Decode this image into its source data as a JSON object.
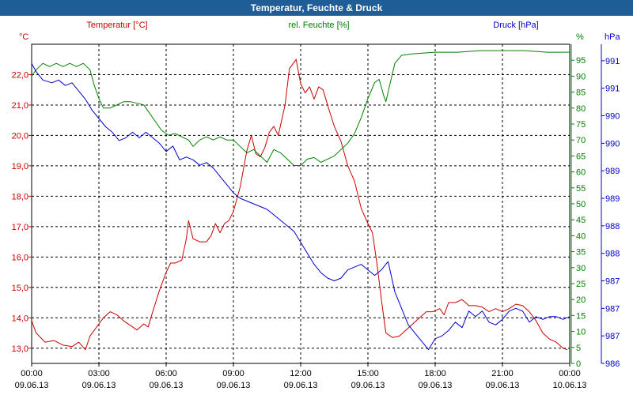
{
  "window": {
    "title": "Temperatur, Feuchte & Druck"
  },
  "colors": {
    "temperature": "#cc0000",
    "humidity": "#008000",
    "pressure": "#0000cc",
    "titlebar": "#1f5d97",
    "grid": "#000000"
  },
  "chart_data": {
    "type": "line",
    "title": "Temperatur, Feuchte & Druck",
    "grid": true,
    "x_ticks": [
      {
        "time": "00:00",
        "date": "09.06.13"
      },
      {
        "time": "03:00",
        "date": "09.06.13"
      },
      {
        "time": "06:00",
        "date": "09.06.13"
      },
      {
        "time": "09:00",
        "date": "09.06.13"
      },
      {
        "time": "12:00",
        "date": "09.06.13"
      },
      {
        "time": "15:00",
        "date": "09.06.13"
      },
      {
        "time": "18:00",
        "date": "09.06.13"
      },
      {
        "time": "21:00",
        "date": "09.06.13"
      },
      {
        "time": "00:00",
        "date": "10.06.13"
      }
    ],
    "xlim": [
      0,
      24
    ],
    "axes": {
      "temperature": {
        "label": "Temperatur [°C]",
        "unit": "°C",
        "ylim": [
          12.5,
          23.0
        ],
        "ticks": [
          "13,0",
          "14,0",
          "15,0",
          "16,0",
          "17,0",
          "18,0",
          "19,0",
          "20,0",
          "21,0",
          "22,0"
        ]
      },
      "humidity": {
        "label": "rel. Feuchte [%]",
        "unit": "%",
        "ylim": [
          0,
          100
        ],
        "ticks": [
          "0",
          "5",
          "10",
          "15",
          "20",
          "25",
          "30",
          "35",
          "40",
          "45",
          "50",
          "55",
          "60",
          "65",
          "70",
          "75",
          "80",
          "85",
          "90",
          "95"
        ]
      },
      "pressure": {
        "label": "Druck [hPa]",
        "unit": "hPa",
        "ylim": [
          986.0,
          991.8
        ],
        "ticks": [
          "986",
          "987",
          "987",
          "987",
          "988",
          "988",
          "989",
          "989",
          "990",
          "990",
          "991",
          "991"
        ]
      }
    },
    "series": [
      {
        "name": "Temperatur [°C]",
        "axis": "temperature",
        "points": [
          [
            0,
            13.9
          ],
          [
            0.2,
            13.5
          ],
          [
            0.6,
            13.2
          ],
          [
            1.0,
            13.25
          ],
          [
            1.4,
            13.1
          ],
          [
            1.8,
            13.05
          ],
          [
            2.1,
            13.2
          ],
          [
            2.4,
            12.95
          ],
          [
            2.6,
            13.4
          ],
          [
            2.9,
            13.7
          ],
          [
            3.2,
            14.0
          ],
          [
            3.5,
            14.2
          ],
          [
            3.8,
            14.1
          ],
          [
            4.1,
            13.9
          ],
          [
            4.4,
            13.75
          ],
          [
            4.7,
            13.6
          ],
          [
            5.0,
            13.8
          ],
          [
            5.2,
            13.7
          ],
          [
            5.4,
            14.2
          ],
          [
            5.7,
            14.9
          ],
          [
            6.0,
            15.5
          ],
          [
            6.2,
            15.8
          ],
          [
            6.4,
            15.8
          ],
          [
            6.7,
            15.9
          ],
          [
            6.9,
            16.6
          ],
          [
            7.0,
            17.2
          ],
          [
            7.2,
            16.6
          ],
          [
            7.5,
            16.5
          ],
          [
            7.8,
            16.5
          ],
          [
            8.0,
            16.7
          ],
          [
            8.2,
            17.1
          ],
          [
            8.4,
            16.8
          ],
          [
            8.6,
            17.1
          ],
          [
            8.8,
            17.2
          ],
          [
            9.0,
            17.5
          ],
          [
            9.3,
            18.3
          ],
          [
            9.6,
            19.5
          ],
          [
            9.8,
            20.0
          ],
          [
            10.0,
            19.4
          ],
          [
            10.2,
            19.3
          ],
          [
            10.4,
            19.6
          ],
          [
            10.6,
            20.1
          ],
          [
            10.8,
            20.3
          ],
          [
            11.0,
            20.0
          ],
          [
            11.3,
            21.0
          ],
          [
            11.5,
            22.2
          ],
          [
            11.8,
            22.5
          ],
          [
            12.0,
            21.7
          ],
          [
            12.2,
            21.4
          ],
          [
            12.4,
            21.6
          ],
          [
            12.6,
            21.2
          ],
          [
            12.8,
            21.6
          ],
          [
            13.0,
            21.5
          ],
          [
            13.2,
            21.0
          ],
          [
            13.5,
            20.3
          ],
          [
            13.8,
            19.8
          ],
          [
            14.1,
            19.0
          ],
          [
            14.4,
            18.5
          ],
          [
            14.7,
            17.6
          ],
          [
            15.0,
            17.1
          ],
          [
            15.2,
            16.8
          ],
          [
            15.4,
            15.8
          ],
          [
            15.6,
            14.6
          ],
          [
            15.8,
            13.5
          ],
          [
            16.1,
            13.35
          ],
          [
            16.4,
            13.4
          ],
          [
            16.7,
            13.6
          ],
          [
            17.0,
            13.8
          ],
          [
            17.3,
            14.0
          ],
          [
            17.6,
            14.2
          ],
          [
            17.9,
            14.2
          ],
          [
            18.2,
            14.3
          ],
          [
            18.4,
            14.1
          ],
          [
            18.6,
            14.5
          ],
          [
            18.9,
            14.5
          ],
          [
            19.2,
            14.6
          ],
          [
            19.5,
            14.4
          ],
          [
            19.8,
            14.4
          ],
          [
            20.1,
            14.35
          ],
          [
            20.4,
            14.2
          ],
          [
            20.7,
            14.3
          ],
          [
            21.0,
            14.2
          ],
          [
            21.3,
            14.3
          ],
          [
            21.6,
            14.45
          ],
          [
            21.9,
            14.4
          ],
          [
            22.2,
            14.2
          ],
          [
            22.5,
            13.9
          ],
          [
            22.8,
            13.5
          ],
          [
            23.1,
            13.3
          ],
          [
            23.4,
            13.2
          ],
          [
            23.7,
            13.0
          ],
          [
            23.9,
            12.95
          ]
        ]
      },
      {
        "name": "rel. Feuchte [%]",
        "axis": "humidity",
        "points": [
          [
            0,
            90
          ],
          [
            0.2,
            92
          ],
          [
            0.5,
            94
          ],
          [
            0.8,
            93
          ],
          [
            1.1,
            94
          ],
          [
            1.4,
            93
          ],
          [
            1.7,
            94
          ],
          [
            2.0,
            93
          ],
          [
            2.3,
            94
          ],
          [
            2.6,
            92
          ],
          [
            2.8,
            87
          ],
          [
            3.0,
            83
          ],
          [
            3.2,
            80
          ],
          [
            3.5,
            80
          ],
          [
            3.8,
            81
          ],
          [
            4.1,
            82
          ],
          [
            4.4,
            82
          ],
          [
            4.7,
            81.5
          ],
          [
            5.0,
            81
          ],
          [
            5.2,
            79
          ],
          [
            5.5,
            76
          ],
          [
            5.8,
            73
          ],
          [
            6.1,
            71.5
          ],
          [
            6.4,
            72
          ],
          [
            6.7,
            71
          ],
          [
            7.0,
            70
          ],
          [
            7.2,
            68
          ],
          [
            7.5,
            70
          ],
          [
            7.8,
            71
          ],
          [
            8.1,
            70
          ],
          [
            8.4,
            71
          ],
          [
            8.7,
            70
          ],
          [
            9.0,
            70
          ],
          [
            9.3,
            68
          ],
          [
            9.6,
            66
          ],
          [
            9.9,
            67
          ],
          [
            10.2,
            65
          ],
          [
            10.5,
            63
          ],
          [
            10.8,
            67
          ],
          [
            11.1,
            66
          ],
          [
            11.4,
            64
          ],
          [
            11.7,
            62
          ],
          [
            12.0,
            62
          ],
          [
            12.3,
            64
          ],
          [
            12.6,
            64.5
          ],
          [
            12.9,
            63
          ],
          [
            13.2,
            64
          ],
          [
            13.5,
            65
          ],
          [
            13.8,
            67
          ],
          [
            14.1,
            69
          ],
          [
            14.4,
            72
          ],
          [
            14.7,
            77
          ],
          [
            15.0,
            83
          ],
          [
            15.3,
            88
          ],
          [
            15.5,
            89
          ],
          [
            15.7,
            84
          ],
          [
            15.8,
            82
          ],
          [
            16.0,
            88
          ],
          [
            16.2,
            94
          ],
          [
            16.5,
            96.5
          ],
          [
            17.0,
            97
          ],
          [
            18.0,
            97.5
          ],
          [
            19.0,
            97.5
          ],
          [
            20.0,
            98
          ],
          [
            21.0,
            98
          ],
          [
            22.0,
            98
          ],
          [
            23.0,
            97.5
          ],
          [
            24.0,
            97.5
          ]
        ]
      },
      {
        "name": "Druck [hPa]",
        "axis": "pressure",
        "points": [
          [
            0,
            991.45
          ],
          [
            0.2,
            991.3
          ],
          [
            0.5,
            991.15
          ],
          [
            0.9,
            991.1
          ],
          [
            1.2,
            991.15
          ],
          [
            1.5,
            991.05
          ],
          [
            1.8,
            991.1
          ],
          [
            2.1,
            990.95
          ],
          [
            2.4,
            990.8
          ],
          [
            2.7,
            990.6
          ],
          [
            3.0,
            990.45
          ],
          [
            3.3,
            990.3
          ],
          [
            3.6,
            990.2
          ],
          [
            3.9,
            990.05
          ],
          [
            4.2,
            990.1
          ],
          [
            4.5,
            990.2
          ],
          [
            4.8,
            990.1
          ],
          [
            5.1,
            990.2
          ],
          [
            5.4,
            990.1
          ],
          [
            5.7,
            990.0
          ],
          [
            6.0,
            989.85
          ],
          [
            6.3,
            989.95
          ],
          [
            6.6,
            989.7
          ],
          [
            6.9,
            989.75
          ],
          [
            7.2,
            989.7
          ],
          [
            7.5,
            989.6
          ],
          [
            7.8,
            989.65
          ],
          [
            8.1,
            989.55
          ],
          [
            8.4,
            989.4
          ],
          [
            8.7,
            989.25
          ],
          [
            9.0,
            989.1
          ],
          [
            9.3,
            989.0
          ],
          [
            9.6,
            988.95
          ],
          [
            9.9,
            988.9
          ],
          [
            10.2,
            988.85
          ],
          [
            10.5,
            988.8
          ],
          [
            10.8,
            988.7
          ],
          [
            11.1,
            988.6
          ],
          [
            11.4,
            988.5
          ],
          [
            11.7,
            988.4
          ],
          [
            12.0,
            988.2
          ],
          [
            12.3,
            988.0
          ],
          [
            12.6,
            987.8
          ],
          [
            12.9,
            987.65
          ],
          [
            13.2,
            987.55
          ],
          [
            13.5,
            987.5
          ],
          [
            13.8,
            987.55
          ],
          [
            14.1,
            987.7
          ],
          [
            14.4,
            987.75
          ],
          [
            14.7,
            987.8
          ],
          [
            15.0,
            987.7
          ],
          [
            15.3,
            987.6
          ],
          [
            15.6,
            987.7
          ],
          [
            15.9,
            987.85
          ],
          [
            16.2,
            987.3
          ],
          [
            16.5,
            987.0
          ],
          [
            16.8,
            986.7
          ],
          [
            17.1,
            986.55
          ],
          [
            17.4,
            986.4
          ],
          [
            17.7,
            986.25
          ],
          [
            18.0,
            986.45
          ],
          [
            18.3,
            986.5
          ],
          [
            18.6,
            986.6
          ],
          [
            18.9,
            986.75
          ],
          [
            19.2,
            986.65
          ],
          [
            19.5,
            986.95
          ],
          [
            19.8,
            986.85
          ],
          [
            20.1,
            986.95
          ],
          [
            20.4,
            986.75
          ],
          [
            20.7,
            986.7
          ],
          [
            21.0,
            986.8
          ],
          [
            21.3,
            986.95
          ],
          [
            21.6,
            987.0
          ],
          [
            21.9,
            986.95
          ],
          [
            22.2,
            986.75
          ],
          [
            22.5,
            986.85
          ],
          [
            22.8,
            986.8
          ],
          [
            23.1,
            986.85
          ],
          [
            23.4,
            986.85
          ],
          [
            23.7,
            986.8
          ],
          [
            24.0,
            986.85
          ]
        ]
      }
    ]
  }
}
